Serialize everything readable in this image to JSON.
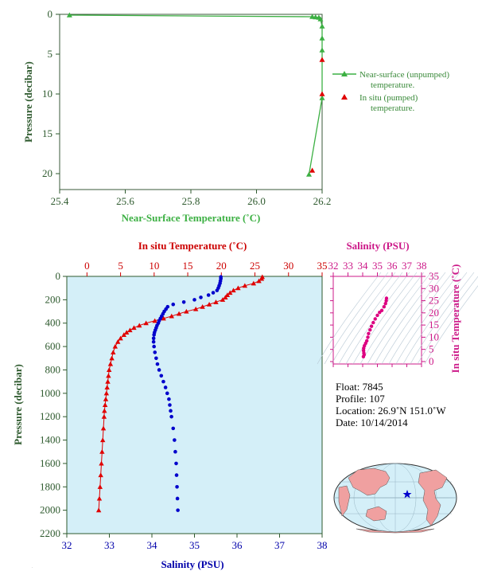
{
  "chart_data": [
    {
      "type": "line",
      "xlabel": "Near-Surface Temperature (˚C)",
      "ylabel": "Pressure (decibar)",
      "xlim": [
        25.4,
        26.2
      ],
      "ylim": [
        0,
        22
      ],
      "y_inverted": true,
      "xticks": [
        "25.4",
        "25.6",
        "25.8",
        "26.0",
        "26.2"
      ],
      "yticks": [
        "0",
        "5",
        "10",
        "15",
        "20"
      ],
      "legend_position": "right",
      "series": [
        {
          "name": "Near-surface (unpumped) temperature.",
          "color": "#3cb043",
          "marker": "triangle",
          "x": [
            25.43,
            26.17,
            26.18,
            26.19,
            26.195,
            26.2,
            26.2,
            26.2,
            26.2,
            26.16
          ],
          "y": [
            0.1,
            0.3,
            0.35,
            0.4,
            0.6,
            1.5,
            3,
            4.5,
            10.5,
            20.1
          ]
        },
        {
          "name": "In situ (pumped) temperature.",
          "color": "#e00000",
          "marker": "triangle",
          "x": [
            26.2,
            26.2,
            26.17
          ],
          "y": [
            5.7,
            10,
            19.6
          ]
        }
      ]
    },
    {
      "type": "scatter",
      "x_top_label": "In situ Temperature (˚C)",
      "x_bottom_label": "Salinity (PSU)",
      "ylabel": "Pressure (decibar)",
      "temp_lim": [
        -3,
        35
      ],
      "sal_lim": [
        32,
        38
      ],
      "ylim": [
        0,
        2200
      ],
      "y_inverted": true,
      "temp_ticks": [
        "0",
        "5",
        "10",
        "15",
        "20",
        "25",
        "30",
        "35"
      ],
      "sal_ticks": [
        "32",
        "33",
        "34",
        "35",
        "36",
        "37",
        "38"
      ],
      "yticks": [
        "0",
        "200",
        "400",
        "600",
        "800",
        "1000",
        "1200",
        "1400",
        "1600",
        "1800",
        "2000",
        "2200"
      ],
      "background": "#d4eff8",
      "temperature": {
        "color": "#e00000",
        "marker": "triangle",
        "pressure": [
          5,
          20,
          40,
          60,
          80,
          100,
          120,
          140,
          160,
          180,
          200,
          220,
          240,
          260,
          280,
          300,
          320,
          340,
          360,
          380,
          400,
          420,
          440,
          460,
          480,
          500,
          530,
          560,
          600,
          650,
          700,
          750,
          800,
          850,
          900,
          950,
          1000,
          1050,
          1100,
          1150,
          1200,
          1300,
          1400,
          1500,
          1600,
          1700,
          1800,
          1900,
          2000
        ],
        "values": [
          26.1,
          26.0,
          25.6,
          24.8,
          23.5,
          22.5,
          21.8,
          21.3,
          20.9,
          20.6,
          20.2,
          19.2,
          18.2,
          17.2,
          16.2,
          14.8,
          13.7,
          12.6,
          11.4,
          10.1,
          8.8,
          7.8,
          7.0,
          6.4,
          5.9,
          5.5,
          5.0,
          4.6,
          4.2,
          3.9,
          3.7,
          3.5,
          3.3,
          3.2,
          3.1,
          3.0,
          2.9,
          2.8,
          2.7,
          2.6,
          2.55,
          2.45,
          2.35,
          2.25,
          2.15,
          2.05,
          1.95,
          1.85,
          1.75
        ]
      },
      "salinity": {
        "color": "#0000cc",
        "marker": "circle",
        "pressure": [
          5,
          20,
          40,
          60,
          80,
          100,
          120,
          140,
          160,
          180,
          200,
          220,
          240,
          260,
          280,
          300,
          320,
          340,
          360,
          380,
          400,
          420,
          440,
          460,
          480,
          500,
          530,
          560,
          600,
          650,
          700,
          750,
          800,
          850,
          900,
          950,
          1000,
          1050,
          1100,
          1150,
          1200,
          1300,
          1400,
          1500,
          1600,
          1700,
          1800,
          1900,
          2000
        ],
        "values": [
          35.62,
          35.62,
          35.61,
          35.6,
          35.58,
          35.56,
          35.53,
          35.44,
          35.33,
          35.15,
          35.0,
          34.75,
          34.5,
          34.37,
          34.33,
          34.29,
          34.26,
          34.23,
          34.2,
          34.17,
          34.15,
          34.12,
          34.1,
          34.08,
          34.06,
          34.05,
          34.04,
          34.04,
          34.05,
          34.07,
          34.1,
          34.13,
          34.17,
          34.22,
          34.27,
          34.32,
          34.36,
          34.4,
          34.42,
          34.44,
          34.46,
          34.5,
          34.53,
          34.55,
          34.57,
          34.58,
          34.59,
          34.6,
          34.61
        ]
      }
    },
    {
      "type": "scatter",
      "xlabel": "Salinity (PSU)",
      "ylabel": "In situ Temperature (˚C)",
      "xlim": [
        32,
        38
      ],
      "ylim": [
        -1,
        35
      ],
      "xticks": [
        "32",
        "33",
        "34",
        "35",
        "36",
        "37",
        "38"
      ],
      "yticks": [
        "0",
        "5",
        "10",
        "15",
        "20",
        "25",
        "30",
        "35"
      ],
      "color": "#dd0080",
      "points": [
        [
          34.05,
          2.0
        ],
        [
          34.1,
          2.8
        ],
        [
          34.08,
          3.5
        ],
        [
          34.06,
          4.5
        ],
        [
          34.07,
          5.5
        ],
        [
          34.12,
          6.5
        ],
        [
          34.2,
          7.5
        ],
        [
          34.28,
          8.5
        ],
        [
          34.35,
          10.0
        ],
        [
          34.4,
          11.5
        ],
        [
          34.5,
          13.0
        ],
        [
          34.6,
          14.5
        ],
        [
          34.72,
          16.0
        ],
        [
          34.85,
          17.5
        ],
        [
          35.0,
          19.0
        ],
        [
          35.15,
          20.2
        ],
        [
          35.3,
          21.0
        ],
        [
          35.45,
          22.5
        ],
        [
          35.55,
          23.8
        ],
        [
          35.6,
          25.0
        ],
        [
          35.62,
          26.0
        ]
      ]
    }
  ],
  "info": {
    "float": "Float:  7845",
    "profile": "Profile:  107",
    "location": "Location:  26.9˚N  151.0˚W",
    "date": "Date:  10/14/2014"
  },
  "map": {
    "land_color": "#f0a0a0",
    "ocean_color": "#d4eff8",
    "marker_color": "#0000cc"
  }
}
